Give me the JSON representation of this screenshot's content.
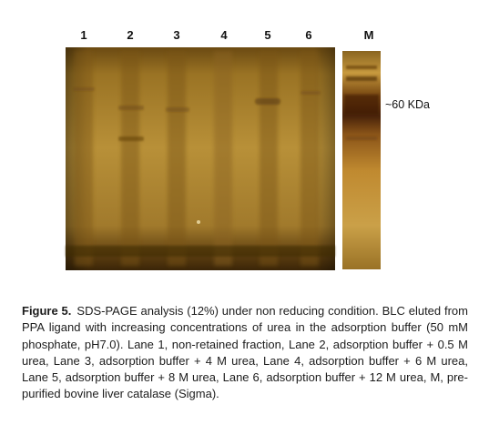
{
  "figure": {
    "lanes": [
      "1",
      "2",
      "3",
      "4",
      "5",
      "6"
    ],
    "marker_lane": "M",
    "marker_band_label": "~60 KDa"
  },
  "caption": {
    "label": "Figure 5.",
    "text": "SDS-PAGE analysis (12%) under non reducing condition. BLC eluted from PPA ligand with increasing concentrations of urea in the adsorption buffer (50 mM phosphate, pH7.0). Lane 1, non-retained fraction, Lane 2, adsorption buffer + 0.5 M urea, Lane 3, adsorption buffer + 4 M urea, Lane 4, adsorption buffer + 6 M urea, Lane 5, adsorption buffer + 8 M urea, Lane 6, adsorption buffer + 12 M urea, M, pre-purified bovine liver catalase (Sigma)."
  }
}
